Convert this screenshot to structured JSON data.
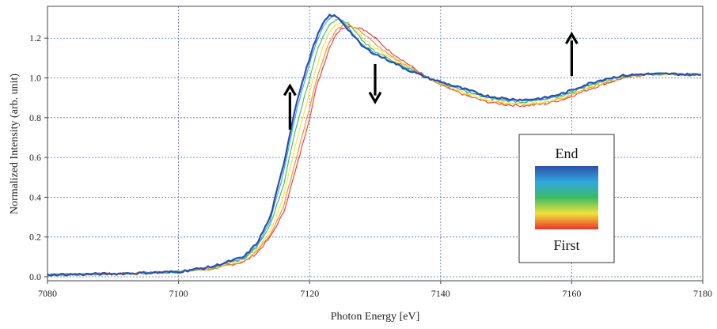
{
  "chart_data": {
    "type": "line",
    "xlabel": "Photon Energy [eV]",
    "ylabel": "Normalized Intensity (arb. unit)",
    "xlim": [
      7080,
      7180
    ],
    "ylim": [
      -0.02,
      1.36
    ],
    "xticks": [
      7080,
      7100,
      7120,
      7140,
      7160,
      7180
    ],
    "yticks": [
      0.0,
      0.2,
      0.4,
      0.6,
      0.8,
      1.0,
      1.2
    ],
    "ytick_labels": [
      "0.0",
      "0.2",
      "0.4",
      "0.6",
      "0.8",
      "1.0",
      "1.2"
    ],
    "grid": true,
    "legend": {
      "placement": "bottom-right",
      "top_label": "End",
      "bottom_label": "First",
      "gradient_colors": [
        "#2e4fa8",
        "#2fa8e0",
        "#3dbb63",
        "#f2e33a",
        "#e8332a"
      ]
    },
    "arrows": [
      {
        "x": 7117,
        "y_from": 0.74,
        "y_to": 0.96,
        "direction": "up"
      },
      {
        "x": 7130,
        "y_from": 1.07,
        "y_to": 0.88,
        "direction": "down"
      },
      {
        "x": 7160,
        "y_from": 1.01,
        "y_to": 1.22,
        "direction": "up"
      }
    ],
    "series": [
      {
        "color": "#e8332a",
        "values": [
          [
            7080,
            0.01
          ],
          [
            7090,
            0.015
          ],
          [
            7100,
            0.025
          ],
          [
            7105,
            0.04
          ],
          [
            7110,
            0.075
          ],
          [
            7112,
            0.12
          ],
          [
            7114,
            0.2
          ],
          [
            7116,
            0.32
          ],
          [
            7118,
            0.55
          ],
          [
            7120,
            0.8
          ],
          [
            7121,
            0.95
          ],
          [
            7122,
            1.05
          ],
          [
            7123,
            1.15
          ],
          [
            7124,
            1.22
          ],
          [
            7125,
            1.25
          ],
          [
            7126,
            1.26
          ],
          [
            7128,
            1.25
          ],
          [
            7130,
            1.2
          ],
          [
            7132,
            1.14
          ],
          [
            7135,
            1.07
          ],
          [
            7138,
            1.0
          ],
          [
            7141,
            0.95
          ],
          [
            7144,
            0.91
          ],
          [
            7147,
            0.88
          ],
          [
            7150,
            0.865
          ],
          [
            7153,
            0.86
          ],
          [
            7156,
            0.87
          ],
          [
            7159,
            0.895
          ],
          [
            7162,
            0.935
          ],
          [
            7165,
            0.97
          ],
          [
            7168,
            1.0
          ],
          [
            7171,
            1.015
          ],
          [
            7175,
            1.02
          ],
          [
            7180,
            1.015
          ]
        ]
      },
      {
        "color": "#f08a2c",
        "values": [
          [
            7080,
            0.01
          ],
          [
            7090,
            0.015
          ],
          [
            7100,
            0.025
          ],
          [
            7105,
            0.04
          ],
          [
            7110,
            0.08
          ],
          [
            7112,
            0.13
          ],
          [
            7114,
            0.21
          ],
          [
            7116,
            0.35
          ],
          [
            7118,
            0.6
          ],
          [
            7120,
            0.85
          ],
          [
            7121,
            0.99
          ],
          [
            7122,
            1.09
          ],
          [
            7123,
            1.18
          ],
          [
            7124,
            1.24
          ],
          [
            7125,
            1.265
          ],
          [
            7126,
            1.265
          ],
          [
            7128,
            1.23
          ],
          [
            7130,
            1.17
          ],
          [
            7132,
            1.12
          ],
          [
            7135,
            1.06
          ],
          [
            7138,
            1.0
          ],
          [
            7141,
            0.955
          ],
          [
            7144,
            0.915
          ],
          [
            7147,
            0.885
          ],
          [
            7150,
            0.87
          ],
          [
            7153,
            0.865
          ],
          [
            7156,
            0.875
          ],
          [
            7159,
            0.9
          ],
          [
            7162,
            0.94
          ],
          [
            7165,
            0.975
          ],
          [
            7168,
            1.003
          ],
          [
            7171,
            1.016
          ],
          [
            7175,
            1.02
          ],
          [
            7180,
            1.015
          ]
        ]
      },
      {
        "color": "#f2e33a",
        "values": [
          [
            7080,
            0.01
          ],
          [
            7090,
            0.015
          ],
          [
            7100,
            0.025
          ],
          [
            7105,
            0.045
          ],
          [
            7110,
            0.085
          ],
          [
            7112,
            0.14
          ],
          [
            7114,
            0.23
          ],
          [
            7116,
            0.4
          ],
          [
            7118,
            0.68
          ],
          [
            7120,
            0.93
          ],
          [
            7121,
            1.05
          ],
          [
            7122,
            1.15
          ],
          [
            7123,
            1.23
          ],
          [
            7124,
            1.27
          ],
          [
            7125,
            1.28
          ],
          [
            7126,
            1.27
          ],
          [
            7128,
            1.21
          ],
          [
            7130,
            1.15
          ],
          [
            7132,
            1.11
          ],
          [
            7135,
            1.055
          ],
          [
            7138,
            1.0
          ],
          [
            7141,
            0.96
          ],
          [
            7144,
            0.92
          ],
          [
            7147,
            0.89
          ],
          [
            7150,
            0.875
          ],
          [
            7153,
            0.87
          ],
          [
            7156,
            0.88
          ],
          [
            7159,
            0.905
          ],
          [
            7162,
            0.945
          ],
          [
            7165,
            0.98
          ],
          [
            7168,
            1.006
          ],
          [
            7171,
            1.017
          ],
          [
            7175,
            1.02
          ],
          [
            7180,
            1.015
          ]
        ]
      },
      {
        "color": "#3dbb63",
        "values": [
          [
            7080,
            0.01
          ],
          [
            7090,
            0.015
          ],
          [
            7100,
            0.025
          ],
          [
            7105,
            0.045
          ],
          [
            7110,
            0.09
          ],
          [
            7112,
            0.15
          ],
          [
            7114,
            0.26
          ],
          [
            7116,
            0.46
          ],
          [
            7118,
            0.76
          ],
          [
            7120,
            1.0
          ],
          [
            7121,
            1.12
          ],
          [
            7122,
            1.21
          ],
          [
            7123,
            1.27
          ],
          [
            7124,
            1.295
          ],
          [
            7125,
            1.29
          ],
          [
            7126,
            1.27
          ],
          [
            7128,
            1.19
          ],
          [
            7130,
            1.13
          ],
          [
            7132,
            1.1
          ],
          [
            7135,
            1.05
          ],
          [
            7138,
            1.0
          ],
          [
            7141,
            0.965
          ],
          [
            7144,
            0.93
          ],
          [
            7147,
            0.9
          ],
          [
            7150,
            0.885
          ],
          [
            7153,
            0.88
          ],
          [
            7156,
            0.89
          ],
          [
            7159,
            0.915
          ],
          [
            7162,
            0.955
          ],
          [
            7165,
            0.985
          ],
          [
            7168,
            1.008
          ],
          [
            7171,
            1.018
          ],
          [
            7175,
            1.02
          ],
          [
            7180,
            1.015
          ]
        ]
      },
      {
        "color": "#2fa8e0",
        "values": [
          [
            7080,
            0.01
          ],
          [
            7090,
            0.015
          ],
          [
            7100,
            0.025
          ],
          [
            7105,
            0.05
          ],
          [
            7110,
            0.095
          ],
          [
            7112,
            0.16
          ],
          [
            7114,
            0.28
          ],
          [
            7116,
            0.52
          ],
          [
            7118,
            0.84
          ],
          [
            7120,
            1.07
          ],
          [
            7121,
            1.18
          ],
          [
            7122,
            1.25
          ],
          [
            7123,
            1.3
          ],
          [
            7124,
            1.31
          ],
          [
            7125,
            1.29
          ],
          [
            7126,
            1.25
          ],
          [
            7128,
            1.17
          ],
          [
            7130,
            1.12
          ],
          [
            7132,
            1.09
          ],
          [
            7135,
            1.045
          ],
          [
            7138,
            1.0
          ],
          [
            7141,
            0.97
          ],
          [
            7144,
            0.935
          ],
          [
            7147,
            0.905
          ],
          [
            7150,
            0.89
          ],
          [
            7153,
            0.885
          ],
          [
            7156,
            0.895
          ],
          [
            7159,
            0.92
          ],
          [
            7162,
            0.96
          ],
          [
            7165,
            0.99
          ],
          [
            7168,
            1.01
          ],
          [
            7171,
            1.018
          ],
          [
            7175,
            1.02
          ],
          [
            7180,
            1.015
          ]
        ]
      },
      {
        "color": "#2e4fa8",
        "values": [
          [
            7080,
            0.01
          ],
          [
            7090,
            0.015
          ],
          [
            7100,
            0.025
          ],
          [
            7105,
            0.05
          ],
          [
            7110,
            0.1
          ],
          [
            7112,
            0.17
          ],
          [
            7114,
            0.3
          ],
          [
            7116,
            0.56
          ],
          [
            7118,
            0.88
          ],
          [
            7120,
            1.1
          ],
          [
            7121,
            1.2
          ],
          [
            7122,
            1.27
          ],
          [
            7123,
            1.315
          ],
          [
            7124,
            1.31
          ],
          [
            7125,
            1.28
          ],
          [
            7126,
            1.24
          ],
          [
            7128,
            1.16
          ],
          [
            7130,
            1.12
          ],
          [
            7132,
            1.09
          ],
          [
            7135,
            1.04
          ],
          [
            7138,
            1.0
          ],
          [
            7141,
            0.97
          ],
          [
            7144,
            0.94
          ],
          [
            7147,
            0.91
          ],
          [
            7150,
            0.895
          ],
          [
            7153,
            0.89
          ],
          [
            7156,
            0.9
          ],
          [
            7159,
            0.925
          ],
          [
            7162,
            0.965
          ],
          [
            7165,
            0.995
          ],
          [
            7168,
            1.012
          ],
          [
            7171,
            1.019
          ],
          [
            7175,
            1.02
          ],
          [
            7180,
            1.015
          ]
        ]
      }
    ]
  }
}
